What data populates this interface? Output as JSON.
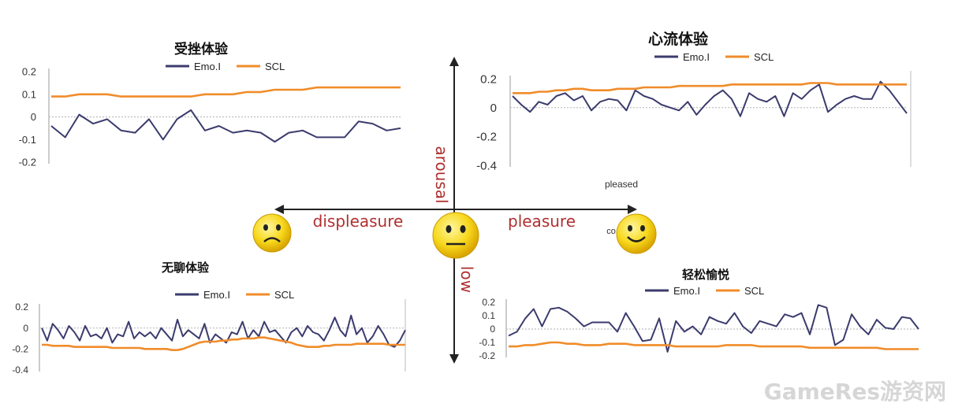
{
  "colors": {
    "emo": "#3b3b6e",
    "scl": "#f08c2a",
    "axis": "#222222",
    "axis_words": "#b03030",
    "face_fill": "#f7d81c",
    "zero_line": "#bdbdbd",
    "watermark": "#d6d6d6"
  },
  "axis_labels": {
    "right": "pleasure",
    "left": "displeasure",
    "up": "arousal",
    "down": "low",
    "pleased": "pleased",
    "partial": "co"
  },
  "faces": [
    {
      "name": "sad-face-icon",
      "mood": "sad"
    },
    {
      "name": "neutral-face-icon",
      "mood": "neutral"
    },
    {
      "name": "happy-face-icon",
      "mood": "happy"
    }
  ],
  "watermark": "GameRes游资网",
  "chart_data": [
    {
      "id": "frustration",
      "type": "line",
      "title": "受挫体验",
      "ylim": [
        -0.2,
        0.2
      ],
      "yticks": [
        "0.2",
        "0.1",
        "0",
        "-0.1",
        "-0.2"
      ],
      "ytick_values": [
        0.2,
        0.1,
        0,
        -0.1,
        -0.2
      ],
      "legend": [
        "Emo.I",
        "SCL"
      ],
      "series": [
        {
          "name": "Emo.I",
          "values": [
            -0.04,
            -0.09,
            0.01,
            -0.03,
            -0.01,
            -0.06,
            -0.07,
            -0.01,
            -0.1,
            -0.01,
            0.03,
            -0.06,
            -0.04,
            -0.07,
            -0.06,
            -0.07,
            -0.11,
            -0.07,
            -0.06,
            -0.09,
            -0.09,
            -0.09,
            -0.02,
            -0.03,
            -0.06,
            -0.05
          ]
        },
        {
          "name": "SCL",
          "values": [
            0.09,
            0.09,
            0.1,
            0.1,
            0.1,
            0.09,
            0.09,
            0.09,
            0.09,
            0.09,
            0.09,
            0.1,
            0.1,
            0.1,
            0.11,
            0.11,
            0.12,
            0.12,
            0.12,
            0.13,
            0.13,
            0.13,
            0.13,
            0.13,
            0.13,
            0.13
          ]
        }
      ]
    },
    {
      "id": "flow",
      "type": "line",
      "title": "心流体验",
      "ylim": [
        -0.4,
        0.2
      ],
      "yticks": [
        "0.2",
        "0",
        "-0.2",
        "-0.4"
      ],
      "ytick_values": [
        0.2,
        0,
        -0.2,
        -0.4
      ],
      "legend": [
        "Emo.I",
        "SCL"
      ],
      "series": [
        {
          "name": "Emo.I",
          "values": [
            0.08,
            0.02,
            -0.03,
            0.04,
            0.02,
            0.08,
            0.1,
            0.05,
            0.08,
            -0.02,
            0.04,
            0.06,
            0.05,
            -0.02,
            0.12,
            0.08,
            0.06,
            0.02,
            0.0,
            -0.02,
            0.04,
            -0.05,
            0.02,
            0.08,
            0.12,
            0.06,
            -0.06,
            0.1,
            0.06,
            0.04,
            0.08,
            -0.06,
            0.1,
            0.06,
            0.12,
            0.16,
            -0.03,
            0.02,
            0.06,
            0.08,
            0.06,
            0.06,
            0.18,
            0.12,
            0.04,
            -0.04
          ]
        },
        {
          "name": "SCL",
          "values": [
            0.1,
            0.1,
            0.1,
            0.11,
            0.11,
            0.12,
            0.12,
            0.13,
            0.13,
            0.12,
            0.12,
            0.12,
            0.13,
            0.13,
            0.13,
            0.14,
            0.14,
            0.14,
            0.14,
            0.15,
            0.15,
            0.15,
            0.15,
            0.15,
            0.15,
            0.16,
            0.16,
            0.16,
            0.16,
            0.16,
            0.16,
            0.16,
            0.16,
            0.16,
            0.17,
            0.17,
            0.17,
            0.16,
            0.16,
            0.16,
            0.16,
            0.16,
            0.16,
            0.16,
            0.16,
            0.16
          ]
        }
      ]
    },
    {
      "id": "boredom",
      "type": "line",
      "title": "无聊体验",
      "ylim": [
        -0.4,
        0.2
      ],
      "yticks": [
        "0.2",
        "0",
        "-0.2",
        "-0.4"
      ],
      "ytick_values": [
        0.2,
        0,
        -0.2,
        -0.4
      ],
      "legend": [
        "Emo.I",
        "SCL"
      ],
      "series": [
        {
          "name": "Emo.I",
          "values": [
            0.0,
            -0.12,
            0.04,
            -0.02,
            -0.1,
            0.02,
            -0.04,
            -0.12,
            0.02,
            -0.08,
            -0.06,
            -0.1,
            0.0,
            -0.14,
            -0.06,
            -0.08,
            0.06,
            -0.1,
            -0.04,
            -0.08,
            -0.04,
            -0.1,
            0.0,
            -0.06,
            -0.12,
            0.08,
            -0.08,
            -0.02,
            -0.06,
            -0.1,
            0.04,
            -0.14,
            -0.06,
            -0.1,
            -0.14,
            -0.04,
            -0.06,
            0.06,
            -0.1,
            -0.02,
            -0.08,
            0.06,
            -0.04,
            -0.02,
            -0.08,
            -0.14,
            -0.04,
            0.0,
            -0.08,
            0.02,
            -0.04,
            -0.06,
            -0.12,
            -0.02,
            0.1,
            -0.02,
            -0.08,
            0.12,
            -0.06,
            0.0,
            -0.14,
            -0.08,
            0.02,
            -0.06,
            -0.16,
            -0.18,
            -0.12,
            -0.02
          ]
        },
        {
          "name": "SCL",
          "values": [
            -0.16,
            -0.16,
            -0.17,
            -0.17,
            -0.17,
            -0.17,
            -0.18,
            -0.18,
            -0.18,
            -0.18,
            -0.18,
            -0.18,
            -0.18,
            -0.19,
            -0.19,
            -0.19,
            -0.19,
            -0.19,
            -0.19,
            -0.2,
            -0.2,
            -0.2,
            -0.2,
            -0.2,
            -0.21,
            -0.21,
            -0.2,
            -0.18,
            -0.16,
            -0.14,
            -0.13,
            -0.13,
            -0.13,
            -0.12,
            -0.12,
            -0.11,
            -0.11,
            -0.1,
            -0.1,
            -0.1,
            -0.09,
            -0.09,
            -0.1,
            -0.11,
            -0.12,
            -0.13,
            -0.14,
            -0.16,
            -0.17,
            -0.18,
            -0.18,
            -0.18,
            -0.17,
            -0.17,
            -0.16,
            -0.16,
            -0.16,
            -0.16,
            -0.15,
            -0.15,
            -0.15,
            -0.15,
            -0.15,
            -0.15,
            -0.16,
            -0.16,
            -0.16,
            -0.16
          ]
        }
      ]
    },
    {
      "id": "relaxed",
      "type": "line",
      "title": "轻松愉悦",
      "ylim": [
        -0.2,
        0.2
      ],
      "yticks": [
        "0.2",
        "0.1",
        "0",
        "-0.1",
        "-0.2"
      ],
      "ytick_values": [
        0.2,
        0.1,
        0,
        -0.1,
        -0.2
      ],
      "legend": [
        "Emo.I",
        "SCL"
      ],
      "series": [
        {
          "name": "Emo.I",
          "values": [
            -0.05,
            -0.02,
            0.08,
            0.15,
            0.02,
            0.15,
            0.16,
            0.13,
            0.08,
            0.02,
            0.05,
            0.05,
            0.05,
            -0.02,
            0.12,
            0.02,
            -0.09,
            -0.08,
            0.08,
            -0.17,
            0.06,
            -0.02,
            0.02,
            -0.04,
            0.09,
            0.06,
            0.04,
            0.12,
            0.02,
            -0.03,
            0.06,
            0.04,
            0.02,
            0.11,
            0.09,
            0.12,
            -0.04,
            0.18,
            0.16,
            -0.12,
            -0.08,
            0.11,
            0.02,
            -0.04,
            0.07,
            0.01,
            0.0,
            0.09,
            0.08,
            0.0
          ]
        },
        {
          "name": "SCL",
          "values": [
            -0.13,
            -0.13,
            -0.12,
            -0.12,
            -0.11,
            -0.1,
            -0.1,
            -0.11,
            -0.11,
            -0.12,
            -0.12,
            -0.12,
            -0.11,
            -0.11,
            -0.11,
            -0.12,
            -0.12,
            -0.12,
            -0.12,
            -0.12,
            -0.13,
            -0.13,
            -0.13,
            -0.13,
            -0.13,
            -0.13,
            -0.12,
            -0.12,
            -0.12,
            -0.12,
            -0.13,
            -0.13,
            -0.13,
            -0.13,
            -0.13,
            -0.13,
            -0.14,
            -0.14,
            -0.14,
            -0.14,
            -0.14,
            -0.14,
            -0.14,
            -0.14,
            -0.14,
            -0.15,
            -0.15,
            -0.15,
            -0.15,
            -0.15
          ]
        }
      ]
    }
  ]
}
